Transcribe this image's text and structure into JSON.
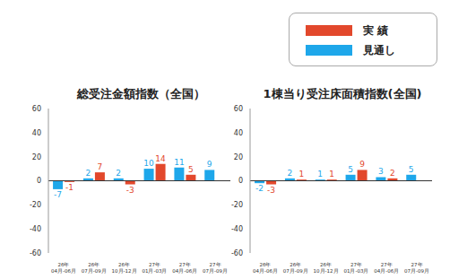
{
  "chart_data": [
    {
      "type": "bar",
      "title": "総受注金額指数（全国）",
      "categories": [
        "26年\n04月-06月",
        "26年\n07月-09月",
        "26年\n10月-12月",
        "27年\n01月-03月",
        "27年\n04月-06月",
        "27年\n07月-09月"
      ],
      "series": [
        {
          "name": "見通し",
          "color": "#1ea7ea",
          "values": [
            -7,
            2,
            2,
            10,
            11,
            9
          ]
        },
        {
          "name": "実 績",
          "color": "#e2482c",
          "values": [
            -1,
            7,
            -3,
            14,
            5,
            null
          ]
        }
      ],
      "ylim": [
        -60,
        60
      ],
      "yticks": [
        -60,
        -40,
        -20,
        0,
        20,
        40,
        60
      ],
      "data_labels": true,
      "grid": false,
      "legend": "top-right"
    },
    {
      "type": "bar",
      "title": "1棟当り受注床面積指数(全国)",
      "categories": [
        "26年\n04月-06月",
        "26年\n07月-09月",
        "26年\n10月-12月",
        "27年\n01月-03月",
        "27年\n04月-06月",
        "27年\n07月-09月"
      ],
      "series": [
        {
          "name": "見通し",
          "color": "#1ea7ea",
          "values": [
            -2,
            2,
            1,
            5,
            3,
            5
          ]
        },
        {
          "name": "実 績",
          "color": "#e2482c",
          "values": [
            -3,
            1,
            1,
            9,
            2,
            null
          ]
        }
      ],
      "ylim": [
        -60,
        60
      ],
      "yticks": [
        -60,
        -40,
        -20,
        0,
        20,
        40,
        60
      ],
      "data_labels": true,
      "grid": false
    }
  ]
}
